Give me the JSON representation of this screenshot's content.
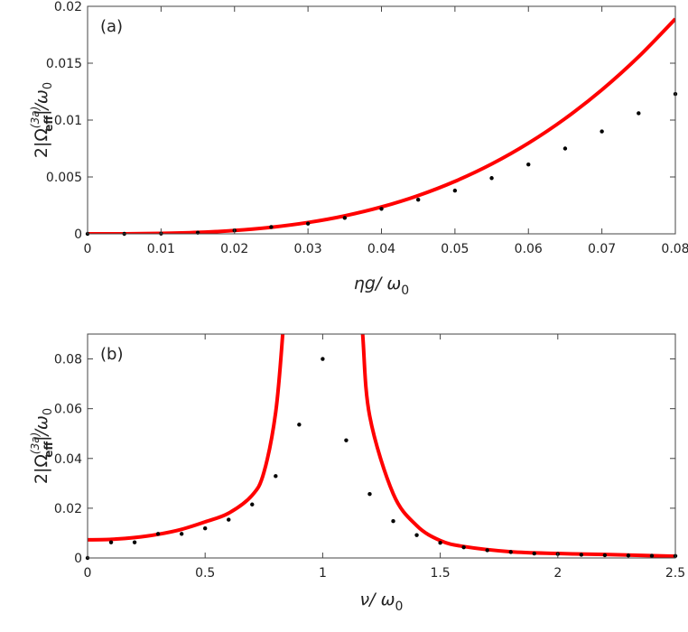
{
  "chart_data": [
    {
      "type": "line",
      "panel_label": "(a)",
      "xlabel": "ηg/ ω0",
      "xlabel_parts": {
        "main": "ηg/ ω",
        "sub": "0"
      },
      "ylabel_parts": {
        "prefix": "2",
        "omega": "Ω",
        "sup": "(3a)",
        "sub": "eff",
        "slash": "/ω",
        "sub0": "0"
      },
      "xlim": [
        0,
        0.08
      ],
      "ylim": [
        0,
        0.02
      ],
      "xticks": [
        "0",
        "0.01",
        "0.02",
        "0.03",
        "0.04",
        "0.05",
        "0.06",
        "0.07",
        "0.08"
      ],
      "yticks": [
        "0",
        "0.005",
        "0.01",
        "0.015",
        "0.02"
      ],
      "xtick_values": [
        0,
        0.01,
        0.02,
        0.03,
        0.04,
        0.05,
        0.06,
        0.07,
        0.08
      ],
      "ytick_values": [
        0,
        0.005,
        0.01,
        0.015,
        0.02
      ],
      "grid": false,
      "series": [
        {
          "style": "line",
          "color": "#ff0000",
          "x": [
            0,
            0.005,
            0.01,
            0.015,
            0.02,
            0.025,
            0.03,
            0.035,
            0.04,
            0.045,
            0.05,
            0.055,
            0.06,
            0.065,
            0.07,
            0.075,
            0.08
          ],
          "y": [
            0,
            4.6e-06,
            3.69e-05,
            0.0001245,
            0.000295,
            0.000577,
            0.000996,
            0.001582,
            0.002362,
            0.003363,
            0.004613,
            0.006139,
            0.00797,
            0.010134,
            0.012657,
            0.015567,
            0.018893
          ]
        },
        {
          "style": "dots",
          "color": "#000000",
          "x": [
            0,
            0.005,
            0.01,
            0.015,
            0.02,
            0.025,
            0.03,
            0.035,
            0.04,
            0.045,
            0.05,
            0.055,
            0.06,
            0.065,
            0.07,
            0.075,
            0.08
          ],
          "y": [
            0,
            0,
            2e-05,
            0.0001,
            0.0003,
            0.0006,
            0.0009,
            0.0014,
            0.0022,
            0.003,
            0.0038,
            0.0049,
            0.0061,
            0.0075,
            0.009,
            0.0106,
            0.0123
          ]
        }
      ]
    },
    {
      "type": "line",
      "panel_label": "(b)",
      "xlabel": "ν/ ω0",
      "xlabel_parts": {
        "main": "ν/ ω",
        "sub": "0"
      },
      "ylabel_parts": {
        "prefix": "2",
        "omega": "Ω",
        "sup": "(3a)",
        "sub": "eff",
        "slash": "/ω",
        "sub0": "0"
      },
      "xlim": [
        0,
        2.5
      ],
      "ylim": [
        0,
        0.09
      ],
      "xticks": [
        "0",
        "0.5",
        "1",
        "1.5",
        "2",
        "2.5"
      ],
      "yticks": [
        "0",
        "0.02",
        "0.04",
        "0.06",
        "0.08"
      ],
      "xtick_values": [
        0,
        0.5,
        1,
        1.5,
        2,
        2.5
      ],
      "ytick_values": [
        0,
        0.02,
        0.04,
        0.06,
        0.08
      ],
      "grid": false,
      "series": [
        {
          "style": "line",
          "color": "#ff0000",
          "x": [
            0,
            0.1,
            0.2,
            0.3,
            0.4,
            0.5,
            0.6,
            0.7,
            0.75,
            0.8,
            0.83,
            0.85
          ],
          "y": [
            0.0073,
            0.0075,
            0.0082,
            0.0095,
            0.0115,
            0.0145,
            0.018,
            0.0252,
            0.0344,
            0.0585,
            0.09,
            0.12
          ]
        },
        {
          "style": "line",
          "color": "#ff0000",
          "x": [
            1.15,
            1.17,
            1.2,
            1.3,
            1.4,
            1.5,
            1.6,
            1.8,
            2.0,
            2.2,
            2.5
          ],
          "y": [
            0.12,
            0.09,
            0.057,
            0.0258,
            0.013,
            0.007,
            0.0046,
            0.0025,
            0.0018,
            0.0014,
            0.0007
          ]
        },
        {
          "style": "dots",
          "color": "#000000",
          "x": [
            0,
            0.1,
            0.2,
            0.3,
            0.4,
            0.5,
            0.6,
            0.7,
            0.8,
            0.9,
            1.0,
            1.1,
            1.2,
            1.3,
            1.4,
            1.5,
            1.6,
            1.7,
            1.8,
            1.9,
            2.0,
            2.1,
            2.2,
            2.3,
            2.4,
            2.5
          ],
          "y": [
            0,
            0.0063,
            0.0063,
            0.0097,
            0.0097,
            0.0119,
            0.0154,
            0.0215,
            0.0329,
            0.0536,
            0.08,
            0.0473,
            0.0257,
            0.0148,
            0.0092,
            0.0061,
            0.0043,
            0.0031,
            0.0024,
            0.0018,
            0.0016,
            0.0013,
            0.0011,
            0.001,
            0.0009,
            0.0008
          ]
        }
      ]
    }
  ]
}
